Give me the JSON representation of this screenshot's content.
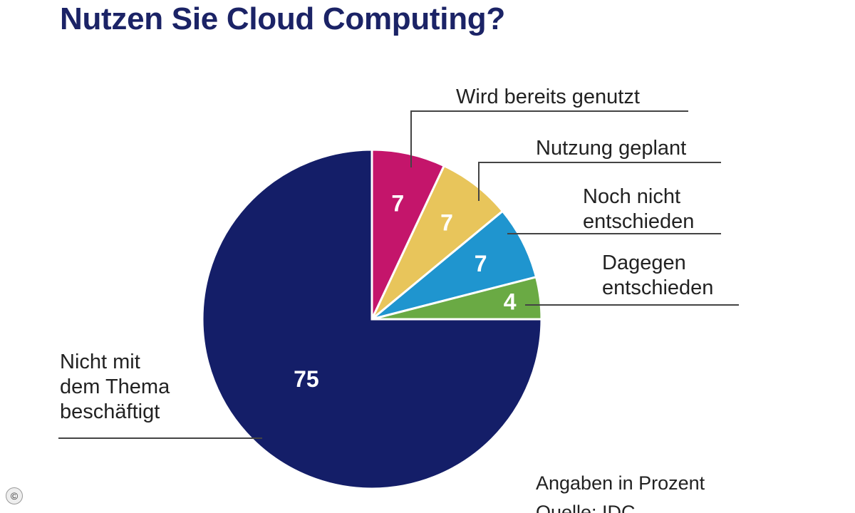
{
  "title": "Nutzen Sie Cloud Computing?",
  "chart_data": {
    "type": "pie",
    "title": "Nutzen Sie Cloud Computing?",
    "slices": [
      {
        "label": [
          "Wird bereits genutzt"
        ],
        "value": 7,
        "color": "#c4156b"
      },
      {
        "label": [
          "Nutzung geplant"
        ],
        "value": 7,
        "color": "#e8c55b"
      },
      {
        "label": [
          "Noch nicht",
          "entschieden"
        ],
        "value": 7,
        "color": "#1f95cf"
      },
      {
        "label": [
          "Dagegen",
          "entschieden"
        ],
        "value": 4,
        "color": "#6aaa44"
      },
      {
        "label": [
          "Nicht mit",
          "dem Thema",
          "beschäftigt"
        ],
        "value": 75,
        "color": "#141e68"
      }
    ],
    "start": "12 o'clock",
    "direction": "clockwise",
    "unit_note": "Angaben in Prozent",
    "source": "Quelle: IDC"
  },
  "footer": {
    "unit_note": "Angaben in Prozent",
    "source": "Quelle: IDC",
    "copyright_symbol": "©"
  }
}
